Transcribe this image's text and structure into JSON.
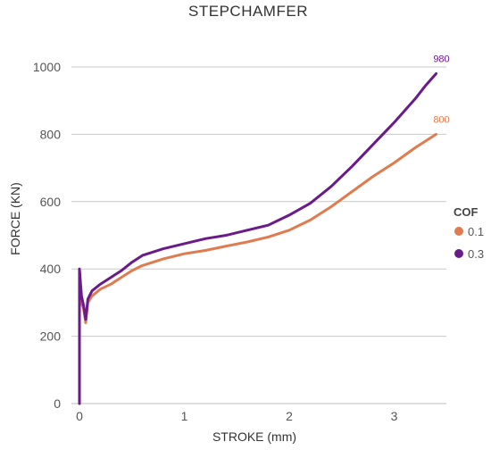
{
  "chart_data": {
    "type": "line",
    "title": "STEPCHAMFER",
    "xlabel": "STROKE (mm)",
    "ylabel": "FORCE (KN)",
    "xlim": [
      0,
      3.5
    ],
    "ylim": [
      0,
      1000
    ],
    "x_ticks": [
      0,
      1,
      2,
      3
    ],
    "y_ticks": [
      0,
      200,
      400,
      600,
      800,
      1000
    ],
    "grid": true,
    "legend": {
      "title": "COF",
      "position": "right"
    },
    "series": [
      {
        "name": "0.1",
        "color": "#e07b4f",
        "end_label": "800",
        "points": [
          [
            0.0,
            0
          ],
          [
            0.0,
            390
          ],
          [
            0.02,
            300
          ],
          [
            0.04,
            280
          ],
          [
            0.06,
            240
          ],
          [
            0.08,
            300
          ],
          [
            0.12,
            320
          ],
          [
            0.2,
            340
          ],
          [
            0.3,
            355
          ],
          [
            0.4,
            375
          ],
          [
            0.5,
            395
          ],
          [
            0.6,
            410
          ],
          [
            0.8,
            430
          ],
          [
            1.0,
            445
          ],
          [
            1.2,
            455
          ],
          [
            1.4,
            468
          ],
          [
            1.6,
            480
          ],
          [
            1.8,
            495
          ],
          [
            2.0,
            515
          ],
          [
            2.2,
            545
          ],
          [
            2.4,
            585
          ],
          [
            2.6,
            630
          ],
          [
            2.8,
            675
          ],
          [
            3.0,
            715
          ],
          [
            3.2,
            760
          ],
          [
            3.4,
            800
          ]
        ]
      },
      {
        "name": "0.3",
        "color": "#6a1b8a",
        "end_label": "980",
        "points": [
          [
            0.0,
            0
          ],
          [
            0.0,
            400
          ],
          [
            0.02,
            320
          ],
          [
            0.04,
            290
          ],
          [
            0.06,
            250
          ],
          [
            0.08,
            310
          ],
          [
            0.12,
            335
          ],
          [
            0.2,
            355
          ],
          [
            0.3,
            375
          ],
          [
            0.4,
            395
          ],
          [
            0.5,
            420
          ],
          [
            0.6,
            440
          ],
          [
            0.8,
            460
          ],
          [
            1.0,
            475
          ],
          [
            1.2,
            490
          ],
          [
            1.4,
            500
          ],
          [
            1.6,
            515
          ],
          [
            1.8,
            530
          ],
          [
            2.0,
            560
          ],
          [
            2.2,
            595
          ],
          [
            2.4,
            645
          ],
          [
            2.6,
            705
          ],
          [
            2.8,
            770
          ],
          [
            3.0,
            835
          ],
          [
            3.2,
            905
          ],
          [
            3.3,
            945
          ],
          [
            3.4,
            980
          ]
        ]
      }
    ]
  }
}
